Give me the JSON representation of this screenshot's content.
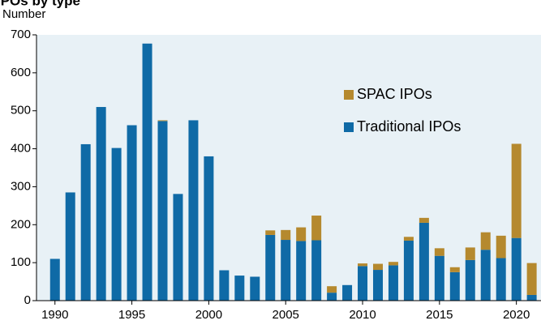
{
  "chart_data": {
    "type": "stacked_bar",
    "title": "IPOs by type",
    "y_label": "Number",
    "x": [
      1990,
      1991,
      1992,
      1993,
      1994,
      1995,
      1996,
      1997,
      1998,
      1999,
      2000,
      2001,
      2002,
      2003,
      2004,
      2005,
      2006,
      2007,
      2008,
      2009,
      2010,
      2011,
      2012,
      2013,
      2014,
      2015,
      2016,
      2017,
      2018,
      2019,
      2020,
      2021
    ],
    "series": [
      {
        "name": "Traditional IPOs",
        "color": "#0f6aa6",
        "values": [
          110,
          285,
          412,
          510,
          402,
          462,
          677,
          473,
          281,
          475,
          380,
          80,
          66,
          63,
          173,
          160,
          157,
          159,
          21,
          41,
          91,
          81,
          93,
          158,
          205,
          118,
          75,
          107,
          134,
          112,
          165,
          15
        ]
      },
      {
        "name": "SPAC IPOs",
        "color": "#b5892e",
        "values": [
          0,
          0,
          0,
          0,
          0,
          0,
          0,
          2,
          0,
          0,
          0,
          0,
          0,
          0,
          12,
          26,
          36,
          65,
          17,
          0,
          7,
          16,
          9,
          10,
          13,
          20,
          13,
          33,
          46,
          59,
          248,
          84
        ]
      }
    ],
    "xlim": [
      1988.8,
      2021.6
    ],
    "xticks": [
      1990,
      1995,
      2000,
      2005,
      2010,
      2015,
      2020
    ],
    "ylim": [
      0,
      700
    ],
    "yticks": [
      0,
      100,
      200,
      300,
      400,
      500,
      600,
      700
    ]
  }
}
